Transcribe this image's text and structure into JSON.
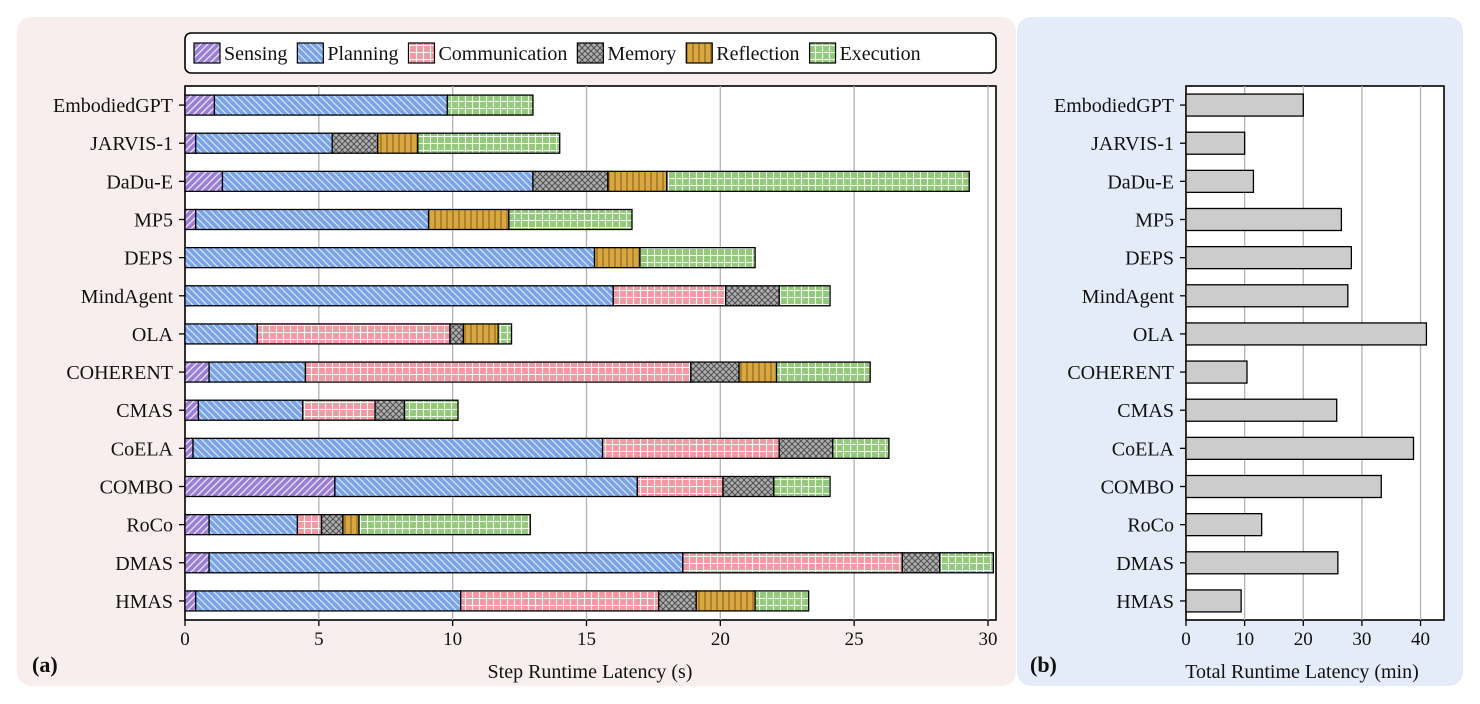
{
  "chart_data": [
    {
      "panel_label": "(a)",
      "type": "bar",
      "orientation": "horizontal",
      "stacked": true,
      "xlabel": "Step Runtime Latency (s)",
      "xlim": [
        0,
        30.3
      ],
      "xticks": [
        0,
        5,
        10,
        15,
        20,
        25,
        30
      ],
      "grid": true,
      "legend_position": "top",
      "categories": [
        "EmbodiedGPT",
        "JARVIS-1",
        "DaDu-E",
        "MP5",
        "DEPS",
        "MindAgent",
        "OLA",
        "COHERENT",
        "CMAS",
        "CoELA",
        "COMBO",
        "RoCo",
        "DMAS",
        "HMAS"
      ],
      "series": [
        {
          "name": "Sensing",
          "color": "#9b7fd6",
          "pattern": "diag-right",
          "values": [
            1.1,
            0.4,
            1.4,
            0.4,
            0.0,
            0.0,
            0.0,
            0.9,
            0.5,
            0.3,
            5.6,
            0.9,
            0.9,
            0.4
          ]
        },
        {
          "name": "Planning",
          "color": "#7aa3e8",
          "pattern": "diag-left",
          "values": [
            8.7,
            5.1,
            11.6,
            8.7,
            15.3,
            16.0,
            2.7,
            3.6,
            3.9,
            15.3,
            11.3,
            3.3,
            17.7,
            9.9
          ]
        },
        {
          "name": "Communication",
          "color": "#f19aa4",
          "pattern": "grid",
          "values": [
            0.0,
            0.0,
            0.0,
            0.0,
            0.0,
            4.2,
            7.2,
            14.4,
            2.7,
            6.6,
            3.2,
            0.9,
            8.2,
            7.4
          ]
        },
        {
          "name": "Memory",
          "color": "#aeaeae",
          "pattern": "cross",
          "values": [
            0.0,
            1.7,
            2.8,
            0.0,
            0.0,
            2.0,
            0.5,
            1.8,
            1.1,
            2.0,
            1.9,
            0.8,
            1.4,
            1.4
          ]
        },
        {
          "name": "Reflection",
          "color": "#d8a73f",
          "pattern": "vertical",
          "values": [
            0.0,
            1.5,
            2.2,
            3.0,
            1.7,
            0.0,
            1.3,
            1.4,
            0.0,
            0.0,
            0.0,
            0.6,
            0.0,
            2.2
          ]
        },
        {
          "name": "Execution",
          "color": "#93c97a",
          "pattern": "grid",
          "values": [
            3.2,
            5.3,
            11.3,
            4.6,
            4.3,
            1.9,
            0.5,
            3.5,
            2.0,
            2.1,
            2.1,
            6.4,
            2.0,
            2.0
          ]
        }
      ]
    },
    {
      "panel_label": "(b)",
      "type": "bar",
      "orientation": "horizontal",
      "xlabel": "Total Runtime Latency (min)",
      "xlim": [
        0,
        44
      ],
      "xticks": [
        0,
        10,
        20,
        30,
        40
      ],
      "grid": true,
      "bar_color": "#cccccc",
      "categories": [
        "EmbodiedGPT",
        "JARVIS-1",
        "DaDu-E",
        "MP5",
        "DEPS",
        "MindAgent",
        "OLA",
        "COHERENT",
        "CMAS",
        "CoELA",
        "COMBO",
        "RoCo",
        "DMAS",
        "HMAS"
      ],
      "values": [
        20.0,
        10.0,
        11.5,
        26.5,
        28.2,
        27.6,
        41.0,
        10.4,
        25.7,
        38.8,
        33.3,
        12.9,
        25.9,
        9.4
      ]
    }
  ]
}
